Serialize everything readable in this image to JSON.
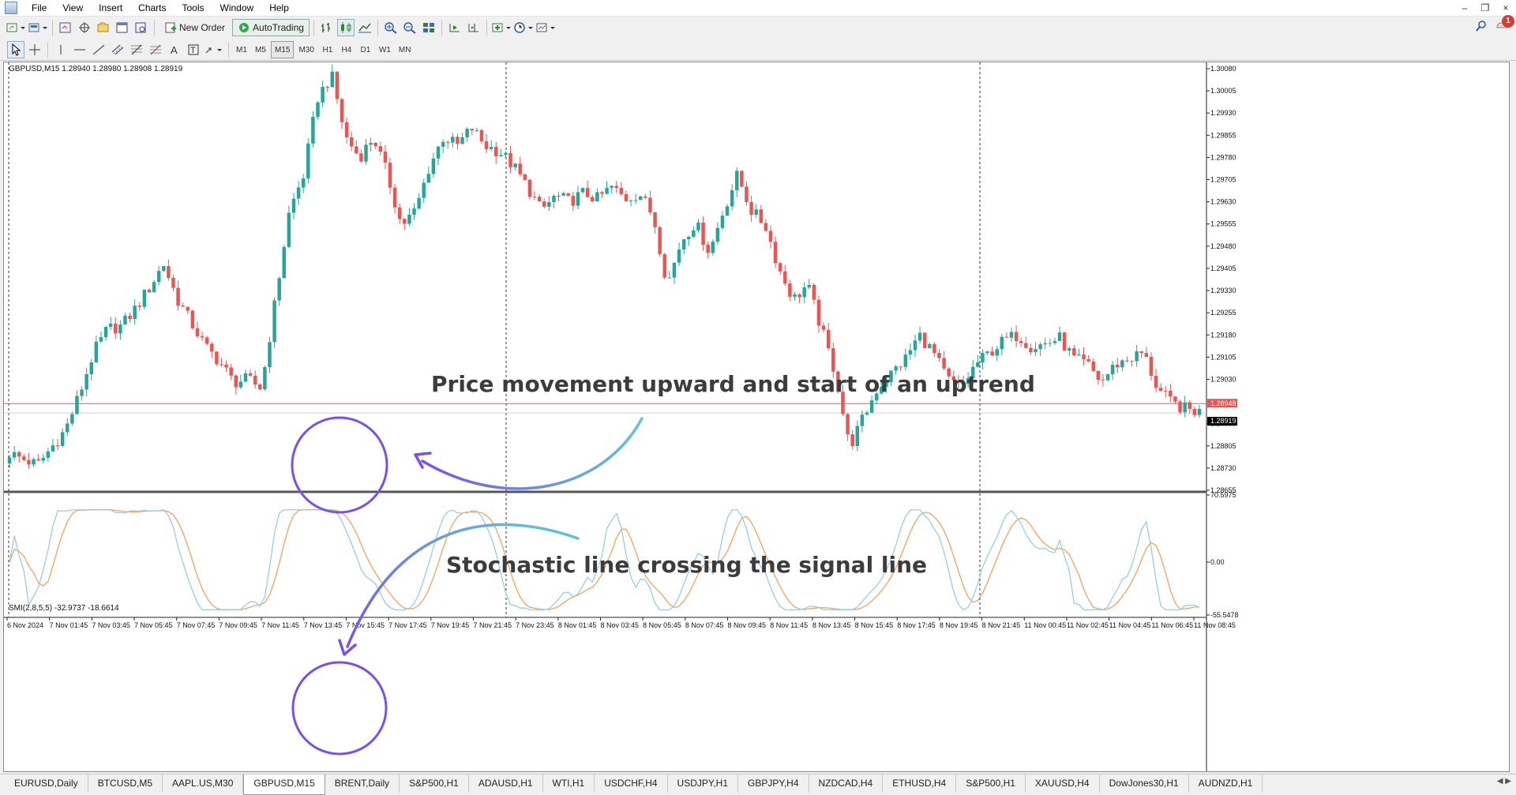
{
  "menu": {
    "items": [
      "File",
      "View",
      "Insert",
      "Charts",
      "Tools",
      "Window",
      "Help"
    ],
    "window_controls": [
      "–",
      "❐",
      "×"
    ]
  },
  "toolbar": {
    "new_order": "New Order",
    "auto_trading": "AutoTrading",
    "notification_count": "1",
    "timeframes": [
      "M1",
      "M5",
      "M15",
      "M30",
      "H1",
      "H4",
      "D1",
      "W1",
      "MN"
    ],
    "active_timeframe": "M15"
  },
  "chart": {
    "header": "GBPUSD,M15  1.28940 1.28980 1.28908 1.28919",
    "indicator_header": "SMI(2,8,5,5) -32.9737 -18.6614",
    "bid_label": "1.28948",
    "last_label": "1.28919",
    "bull_color": "#26a69a",
    "bear_color": "#ef5350",
    "smi_color": "#8ecae6",
    "signal_color": "#f4a261",
    "annotation_color": "#5fc7d6",
    "circle_color": "#7a4ff0",
    "annotations": {
      "uptrend": "Price movement upward and start of an uptrend",
      "crossing": "Stochastic line crossing the signal line"
    }
  },
  "chart_data": [
    {
      "type": "candlestick",
      "title": "GBPUSD,M15",
      "ylim": [
        1.28655,
        1.3008
      ],
      "y_ticks": [
        "1.30080",
        "1.30005",
        "1.29930",
        "1.29855",
        "1.29780",
        "1.29705",
        "1.29630",
        "1.29555",
        "1.29480",
        "1.29405",
        "1.29330",
        "1.29255",
        "1.29180",
        "1.29105",
        "1.29030",
        "1.28880",
        "1.28805",
        "1.28730",
        "1.28655"
      ],
      "x_ticks": [
        "6 Nov 2024",
        "7 Nov 01:45",
        "7 Nov 03:45",
        "7 Nov 05:45",
        "7 Nov 07:45",
        "7 Nov 09:45",
        "7 Nov 11:45",
        "7 Nov 13:45",
        "7 Nov 15:45",
        "7 Nov 17:45",
        "7 Nov 19:45",
        "7 Nov 21:45",
        "7 Nov 23:45",
        "8 Nov 01:45",
        "8 Nov 03:45",
        "8 Nov 05:45",
        "8 Nov 07:45",
        "8 Nov 09:45",
        "8 Nov 11:45",
        "8 Nov 13:45",
        "8 Nov 15:45",
        "8 Nov 17:45",
        "8 Nov 19:45",
        "8 Nov 21:45",
        "11 Nov 00:45",
        "11 Nov 02:45",
        "11 Nov 04:45",
        "11 Nov 06:45",
        "11 Nov 08:45"
      ],
      "close_path": [
        1.2878,
        1.2876,
        1.2874,
        1.288,
        1.2886,
        1.2898,
        1.2912,
        1.292,
        1.2921,
        1.2927,
        1.2934,
        1.2942,
        1.293,
        1.2922,
        1.2914,
        1.2909,
        1.2902,
        1.2903,
        1.29,
        1.293,
        1.296,
        1.2972,
        1.2998,
        1.3006,
        1.2985,
        1.2978,
        1.2985,
        1.2972,
        1.2955,
        1.296,
        1.2975,
        1.2985,
        1.2982,
        1.2988,
        1.2982,
        1.298,
        1.2975,
        1.2968,
        1.296,
        1.2965,
        1.2963,
        1.2966,
        1.2964,
        1.2968,
        1.2964,
        1.2966,
        1.2958,
        1.2935,
        1.295,
        1.2956,
        1.2946,
        1.296,
        1.2972,
        1.296,
        1.2955,
        1.294,
        1.293,
        1.2935,
        1.292,
        1.2905,
        1.288,
        1.289,
        1.29,
        1.2905,
        1.291,
        1.2918,
        1.2912,
        1.2903,
        1.29,
        1.2908,
        1.2912,
        1.2916,
        1.2918,
        1.2914,
        1.2915,
        1.2917,
        1.291,
        1.2908,
        1.2902,
        1.2908,
        1.291,
        1.2912,
        1.29,
        1.2895,
        1.2893,
        1.2892
      ]
    },
    {
      "type": "line",
      "title": "SMI(2,8,5,5)",
      "ylim": [
        -55.5478,
        70.5975
      ],
      "y_ticks": [
        "70.5975",
        "0.00",
        "-55.5478"
      ],
      "series": [
        {
          "name": "SMI",
          "last": -32.9737
        },
        {
          "name": "Signal",
          "last": -18.6614
        }
      ]
    }
  ],
  "tabs": {
    "items": [
      "EURUSD,Daily",
      "BTCUSD,M5",
      "AAPL.US,M30",
      "GBPUSD,M15",
      "BRENT,Daily",
      "S&P500,H1",
      "ADAUSD,H1",
      "WTI,H1",
      "USDCHF,H4",
      "USDJPY,H1",
      "GBPJPY,H4",
      "NZDCAD,H4",
      "ETHUSD,H4",
      "S&P500,H1",
      "XAUUSD,H4",
      "DowJones30,H1",
      "AUDNZD,H1"
    ],
    "active_index": 3
  }
}
